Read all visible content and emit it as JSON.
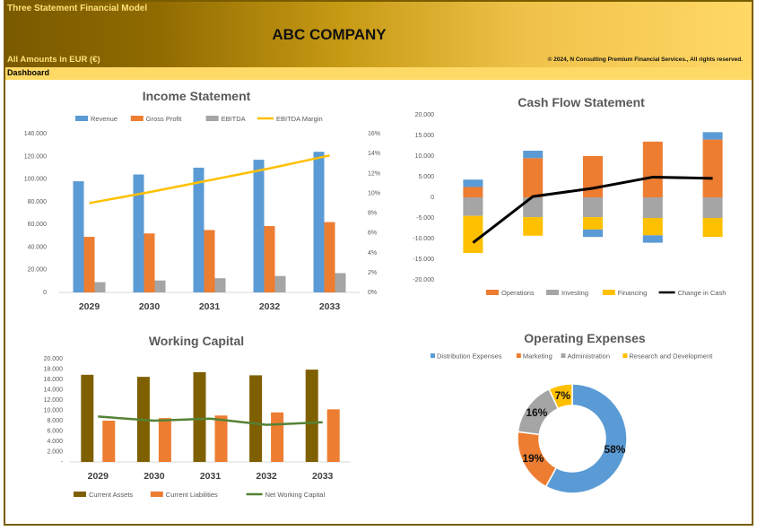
{
  "header": {
    "model_title": "Three Statement Financial Model",
    "company": "ABC COMPANY",
    "amounts": "All Amounts in  EUR (€)",
    "copyright": "© 2024, N Consulting Premium Financial Services., All rights reserved.",
    "dashboard_label": "Dashboard"
  },
  "chart_data": [
    {
      "type": "bar",
      "title": "Income Statement",
      "categories": [
        "2029",
        "2030",
        "2031",
        "2032",
        "2033"
      ],
      "series": [
        {
          "name": "Revenue",
          "color": "#5b9bd5",
          "values": [
            98000,
            104000,
            110000,
            117000,
            124000
          ]
        },
        {
          "name": "Gross Profit",
          "color": "#ed7d31",
          "values": [
            49000,
            52000,
            55000,
            58500,
            62000
          ]
        },
        {
          "name": "EBITDA",
          "color": "#a5a5a5",
          "values": [
            9000,
            10500,
            12500,
            14500,
            17000
          ]
        },
        {
          "name": "EBITDA Margin",
          "type": "line",
          "axis": "right",
          "color": "#ffc000",
          "values": [
            0.09,
            0.101,
            0.113,
            0.125,
            0.138
          ]
        }
      ],
      "ylim": [
        0,
        140000
      ],
      "yticks": [
        "0",
        "20.000",
        "40.000",
        "60.000",
        "80.000",
        "100.000",
        "120.000",
        "140.000"
      ],
      "y2lim": [
        0,
        0.16
      ],
      "y2ticks": [
        "0%",
        "2%",
        "4%",
        "6%",
        "8%",
        "10%",
        "12%",
        "14%",
        "16%"
      ],
      "legend": "top"
    },
    {
      "type": "bar",
      "stacked": true,
      "title": "Cash Flow Statement",
      "categories": [
        "2029",
        "2030",
        "2031",
        "2032",
        "2033"
      ],
      "series": [
        {
          "name": "Operations",
          "color": "#ed7d31",
          "values": [
            2500,
            9500,
            10000,
            13500,
            14000
          ]
        },
        {
          "name": "Investing",
          "color": "#a5a5a5",
          "values": [
            -4500,
            -4800,
            -4800,
            -5000,
            -5000
          ]
        },
        {
          "name": "Financing",
          "color": "#ffc000",
          "values": [
            -9000,
            -4500,
            -3000,
            -4200,
            -4600
          ]
        },
        {
          "name": "Change in Cash",
          "type": "line",
          "color": "#000000",
          "values": [
            -11000,
            200,
            2200,
            4900,
            4600
          ]
        },
        {
          "name": "",
          "color": "#5b9bd5",
          "values": [
            1800,
            1800,
            -1800,
            -1800,
            1800
          ]
        }
      ],
      "ylim": [
        -20000,
        20000
      ],
      "yticks": [
        "-20.000",
        "-15.000",
        "-10.000",
        "-5.000",
        "0",
        "5.000",
        "10.000",
        "15.000",
        "20.000"
      ],
      "legend": "bottom"
    },
    {
      "type": "bar",
      "title": "Working Capital",
      "categories": [
        "2029",
        "2030",
        "2031",
        "2032",
        "2033"
      ],
      "series": [
        {
          "name": "Current Assets",
          "color": "#7f6000",
          "values": [
            16900,
            16500,
            17400,
            16800,
            17900
          ]
        },
        {
          "name": "Current Liabilities",
          "color": "#ed7d31",
          "values": [
            8000,
            8500,
            9000,
            9600,
            10200
          ]
        },
        {
          "name": "Net Working Capital",
          "type": "line",
          "color": "#548235",
          "values": [
            8800,
            8000,
            8400,
            7200,
            7700
          ]
        }
      ],
      "ylim": [
        0,
        20000
      ],
      "yticks": [
        "-",
        "2.000",
        "4.000",
        "6.000",
        "8.000",
        "10.000",
        "12.000",
        "14.000",
        "16.000",
        "18.000",
        "20.000"
      ],
      "legend": "bottom"
    },
    {
      "type": "pie",
      "donut": true,
      "title": "Operating Expenses",
      "series": [
        {
          "name": "Distribution Expenses",
          "color": "#5b9bd5",
          "value": 58,
          "label": "58%"
        },
        {
          "name": "Marketing",
          "color": "#ed7d31",
          "value": 19,
          "label": "19%"
        },
        {
          "name": "Administration",
          "color": "#a5a5a5",
          "value": 16,
          "label": "16%"
        },
        {
          "name": "Research and Development",
          "color": "#ffc000",
          "value": 7,
          "label": "7%"
        }
      ],
      "legend": "top"
    }
  ]
}
